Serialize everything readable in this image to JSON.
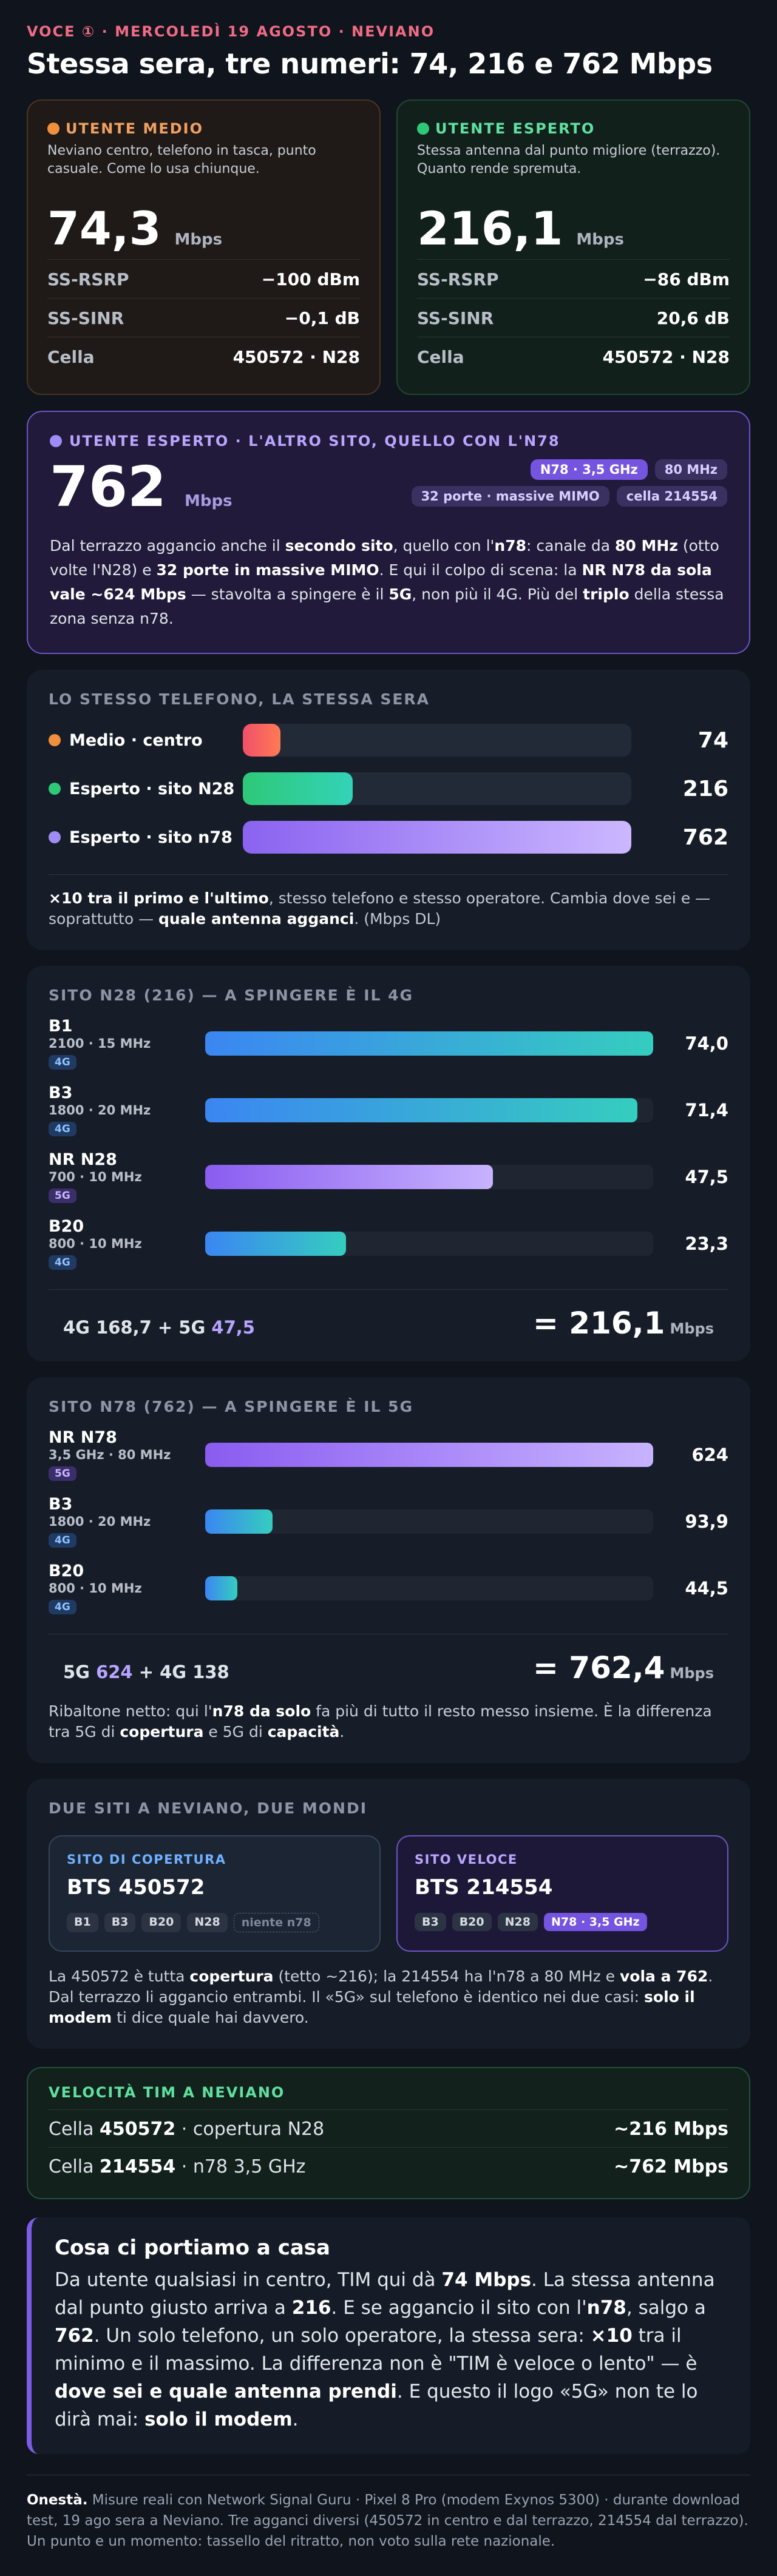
{
  "kicker": "VOCE ① · MERCOLEDÌ 19 AGOSTO · NEVIANO",
  "title": "Stessa sera, tre numeri: 74, 216 e 762 Mbps",
  "medio": {
    "tag": "UTENTE MEDIO",
    "desc": "Neviano centro, telefono in tasca, punto casuale. Come lo usa chiunque.",
    "speed": "74,3",
    "unit": "Mbps",
    "rows": [
      {
        "k": "SS-RSRP",
        "v": "−100 dBm"
      },
      {
        "k": "SS-SINR",
        "v": "−0,1 dB"
      },
      {
        "k": "Cella",
        "v": "450572 · N28"
      }
    ],
    "color": "#f0903c"
  },
  "esperto": {
    "tag": "UTENTE ESPERTO",
    "desc": "Stessa antenna dal punto migliore (terrazzo). Quanto rende spremuta.",
    "speed": "216,1",
    "unit": "Mbps",
    "rows": [
      {
        "k": "SS-RSRP",
        "v": "−86 dBm"
      },
      {
        "k": "SS-SINR",
        "v": "20,6 dB"
      },
      {
        "k": "Cella",
        "v": "450572 · N28"
      }
    ],
    "color": "#2ec877"
  },
  "n78": {
    "tag": "UTENTE ESPERTO · L'ALTRO SITO, QUELLO CON L'N78",
    "speed": "762",
    "unit": "Mbps",
    "pills_row1": [
      "N78 · 3,5 GHz",
      "80 MHz"
    ],
    "pills_row2": [
      "32 porte · massive MIMO",
      "cella 214554"
    ],
    "para": [
      {
        "t": "Dal terrazzo aggancio anche il ",
        "b": false
      },
      {
        "t": "secondo sito",
        "b": true
      },
      {
        "t": ", quello con l'",
        "b": false
      },
      {
        "t": "n78",
        "b": true
      },
      {
        "t": ": canale da ",
        "b": false
      },
      {
        "t": "80 MHz",
        "b": true
      },
      {
        "t": " (otto volte l'N28) e ",
        "b": false
      },
      {
        "t": "32 porte in massive MIMO",
        "b": true
      },
      {
        "t": ". E qui il colpo di scena: la ",
        "b": false
      },
      {
        "t": "NR N78 da sola vale ~624 Mbps",
        "b": true
      },
      {
        "t": " — stavolta a spingere è il ",
        "b": false
      },
      {
        "t": "5G",
        "b": true
      },
      {
        "t": ", non più il 4G. Più del ",
        "b": false
      },
      {
        "t": "triplo",
        "b": true
      },
      {
        "t": " della stessa zona senza n78.",
        "b": false
      }
    ],
    "color": "#a08cf5"
  },
  "compare": {
    "heading": "LO STESSO TELEFONO, LA STESSA SERA",
    "max": 762,
    "rows": [
      {
        "label": "Medio · centro",
        "value": 74,
        "display": "74",
        "dot": "#f0903c",
        "grad": "linear-gradient(90deg,#f0506a,#ff7a55)"
      },
      {
        "label": "Esperto · sito N28",
        "value": 216,
        "display": "216",
        "dot": "#2ec877",
        "grad": "linear-gradient(90deg,#2ec877,#33d3b8)"
      },
      {
        "label": "Esperto · sito n78",
        "value": 762,
        "display": "762",
        "dot": "#a08cf5",
        "grad": "linear-gradient(90deg,#8a63f0,#cbb8ff)"
      }
    ],
    "note": [
      {
        "t": "×10 tra il primo e l'ultimo",
        "b": true
      },
      {
        "t": ", stesso telefono e stesso operatore. Cambia dove sei e — soprattutto — ",
        "b": false
      },
      {
        "t": "quale antenna agganci",
        "b": true
      },
      {
        "t": ". (Mbps DL)",
        "b": false
      }
    ]
  },
  "n28site": {
    "heading": "SITO N28 (216) — A SPINGERE È IL 4G",
    "max": 74,
    "bands": [
      {
        "name": "B1",
        "freq": "2100 · 15 MHz",
        "tech": "4G",
        "value": 74.0,
        "display": "74,0"
      },
      {
        "name": "B3",
        "freq": "1800 · 20 MHz",
        "tech": "4G",
        "value": 71.4,
        "display": "71,4"
      },
      {
        "name": "NR N28",
        "freq": "700 · 10 MHz",
        "tech": "5G",
        "value": 47.5,
        "display": "47,5"
      },
      {
        "name": "B20",
        "freq": "800 · 10 MHz",
        "tech": "4G",
        "value": 23.3,
        "display": "23,3"
      }
    ],
    "sum_a": "4G 168,7 + 5G ",
    "sum_b": "47,5",
    "total": "= 216,1",
    "unit": "Mbps"
  },
  "n78site": {
    "heading": "SITO N78 (762) — A SPINGERE È IL 5G",
    "max": 624,
    "bands": [
      {
        "name": "NR N78",
        "freq": "3,5 GHz · 80 MHz",
        "tech": "5G",
        "value": 624,
        "display": "624"
      },
      {
        "name": "B3",
        "freq": "1800 · 20 MHz",
        "tech": "4G",
        "value": 93.9,
        "display": "93,9"
      },
      {
        "name": "B20",
        "freq": "800 · 10 MHz",
        "tech": "4G",
        "value": 44.5,
        "display": "44,5"
      }
    ],
    "sum_a": "5G ",
    "sum_b": "624",
    "sum_c": " + 4G 138",
    "total": "= 762,4",
    "unit": "Mbps",
    "note": [
      {
        "t": "Ribaltone netto: qui l'",
        "b": false
      },
      {
        "t": "n78 da solo",
        "b": true
      },
      {
        "t": " fa più di tutto il resto messo insieme. È la differenza tra 5G di ",
        "b": false
      },
      {
        "t": "copertura",
        "b": true
      },
      {
        "t": " e 5G di ",
        "b": false
      },
      {
        "t": "capacità",
        "b": true
      },
      {
        "t": ".",
        "b": false
      }
    ]
  },
  "twosites": {
    "heading": "DUE SITI A NEVIANO, DUE MONDI",
    "cov": {
      "tag": "SITO DI COPERTURA",
      "name": "BTS 450572",
      "chips": [
        "B1",
        "B3",
        "B20",
        "N28"
      ],
      "chip_off": "niente n78"
    },
    "fast": {
      "tag": "SITO VELOCE",
      "name": "BTS 214554",
      "chips": [
        "B3",
        "B20",
        "N28"
      ],
      "chip_hot": "N78 · 3,5 GHz"
    },
    "note": [
      {
        "t": "La 450572 è tutta ",
        "b": false
      },
      {
        "t": "copertura",
        "b": true
      },
      {
        "t": " (tetto ~216); la 214554 ha l'n78 a 80 MHz e ",
        "b": false
      },
      {
        "t": "vola a 762",
        "b": true
      },
      {
        "t": ". Dal terrazzo li aggancio entrambi. Il «5G» sul telefono è identico nei due casi: ",
        "b": false
      },
      {
        "t": "solo il modem",
        "b": true
      },
      {
        "t": " ti dice quale hai davvero.",
        "b": false
      }
    ]
  },
  "speeds": {
    "heading": "VELOCITÀ TIM A NEVIANO",
    "rows": [
      {
        "pre": "Cella ",
        "cell": "450572",
        "post": " · copertura N28",
        "val": "~216 Mbps"
      },
      {
        "pre": "Cella ",
        "cell": "214554",
        "post": " · n78 3,5 GHz",
        "val": "~762 Mbps"
      }
    ]
  },
  "takeaway": {
    "heading": "Cosa ci portiamo a casa",
    "text": [
      {
        "t": "Da utente qualsiasi in centro, TIM qui dà ",
        "b": false
      },
      {
        "t": "74 Mbps",
        "b": true
      },
      {
        "t": ". La stessa antenna dal punto giusto arriva a ",
        "b": false
      },
      {
        "t": "216",
        "b": true
      },
      {
        "t": ". E se aggancio il sito con l'",
        "b": false
      },
      {
        "t": "n78",
        "b": true
      },
      {
        "t": ", salgo a ",
        "b": false
      },
      {
        "t": "762",
        "b": true
      },
      {
        "t": ". Un solo telefono, un solo operatore, la stessa sera: ",
        "b": false
      },
      {
        "t": "×10",
        "b": true
      },
      {
        "t": " tra il minimo e il massimo. La differenza non è \"TIM è veloce o lento\" — è ",
        "b": false
      },
      {
        "t": "dove sei e quale antenna prendi",
        "b": true
      },
      {
        "t": ". E questo il logo «5G» non te lo dirà mai: ",
        "b": false
      },
      {
        "t": "solo il modem",
        "b": true
      },
      {
        "t": ".",
        "b": false
      }
    ]
  },
  "footer": {
    "lead": "Onestà.",
    "text": " Misure reali con Network Signal Guru · Pixel 8 Pro (modem Exynos 5300) · durante download test, 19 ago sera a Neviano. Tre agganci diversi (450572 in centro e dal terrazzo, 214554 dal terrazzo). Un punto e un momento: tassello del ritratto, non voto sulla rete nazionale."
  }
}
